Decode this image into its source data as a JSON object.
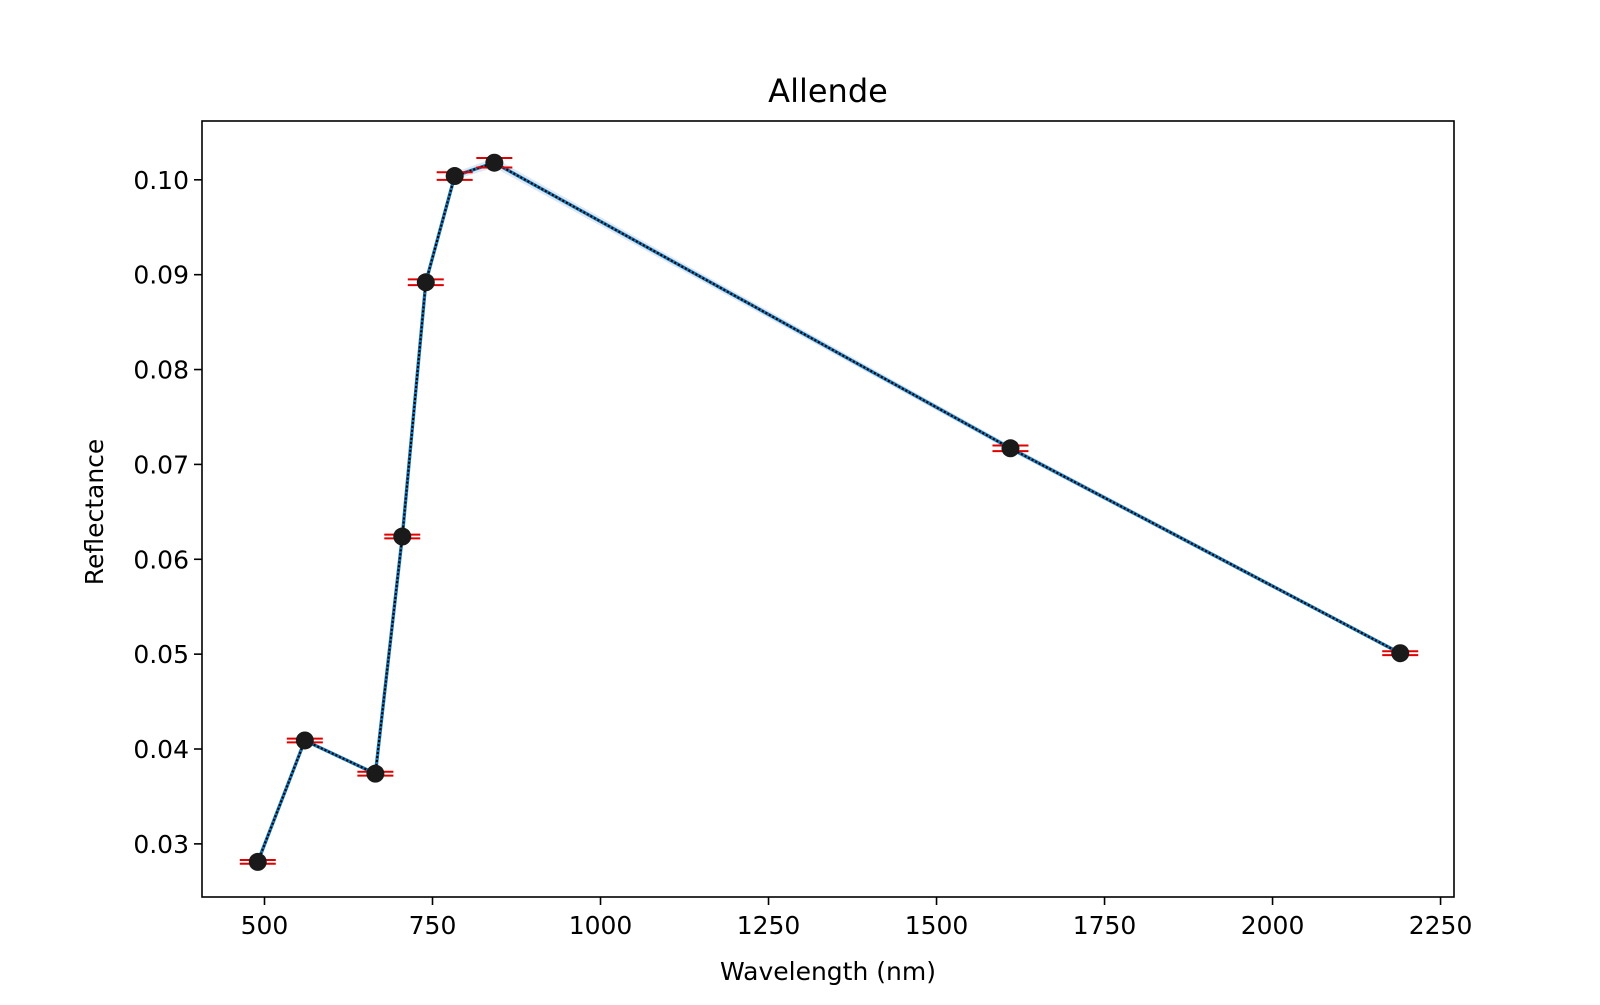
{
  "chart_data": {
    "type": "line",
    "title": "Allende",
    "xlabel": "Wavelength (nm)",
    "ylabel": "Reflectance",
    "xlim": [
      407,
      2270
    ],
    "ylim": [
      0.0244,
      0.1062
    ],
    "xticks": [
      500,
      750,
      1000,
      1250,
      1500,
      1750,
      2000,
      2250
    ],
    "xtick_labels": [
      "500",
      "750",
      "1000",
      "1250",
      "1500",
      "1750",
      "2000",
      "2250"
    ],
    "yticks": [
      0.03,
      0.04,
      0.05,
      0.06,
      0.07,
      0.08,
      0.09,
      0.1
    ],
    "ytick_labels": [
      "0.03",
      "0.04",
      "0.05",
      "0.06",
      "0.07",
      "0.08",
      "0.09",
      "0.10"
    ],
    "grid": false,
    "series": [
      {
        "x": [
          490,
          560,
          665,
          705,
          740,
          783,
          842,
          1610,
          2190
        ],
        "y": [
          0.0281,
          0.0409,
          0.0374,
          0.0624,
          0.0892,
          0.1004,
          0.1018,
          0.0717,
          0.0501
        ],
        "yerr": [
          0.0002,
          0.0002,
          0.0002,
          0.0002,
          0.0003,
          0.0004,
          0.0005,
          0.0003,
          0.0002
        ]
      }
    ],
    "colors": {
      "line": "#1f77b4",
      "line_overlay": "#000000",
      "marker": "#1a1a1a",
      "errorbar": "#e00000",
      "band": "#c9d9ee",
      "axes": "#000000"
    }
  }
}
